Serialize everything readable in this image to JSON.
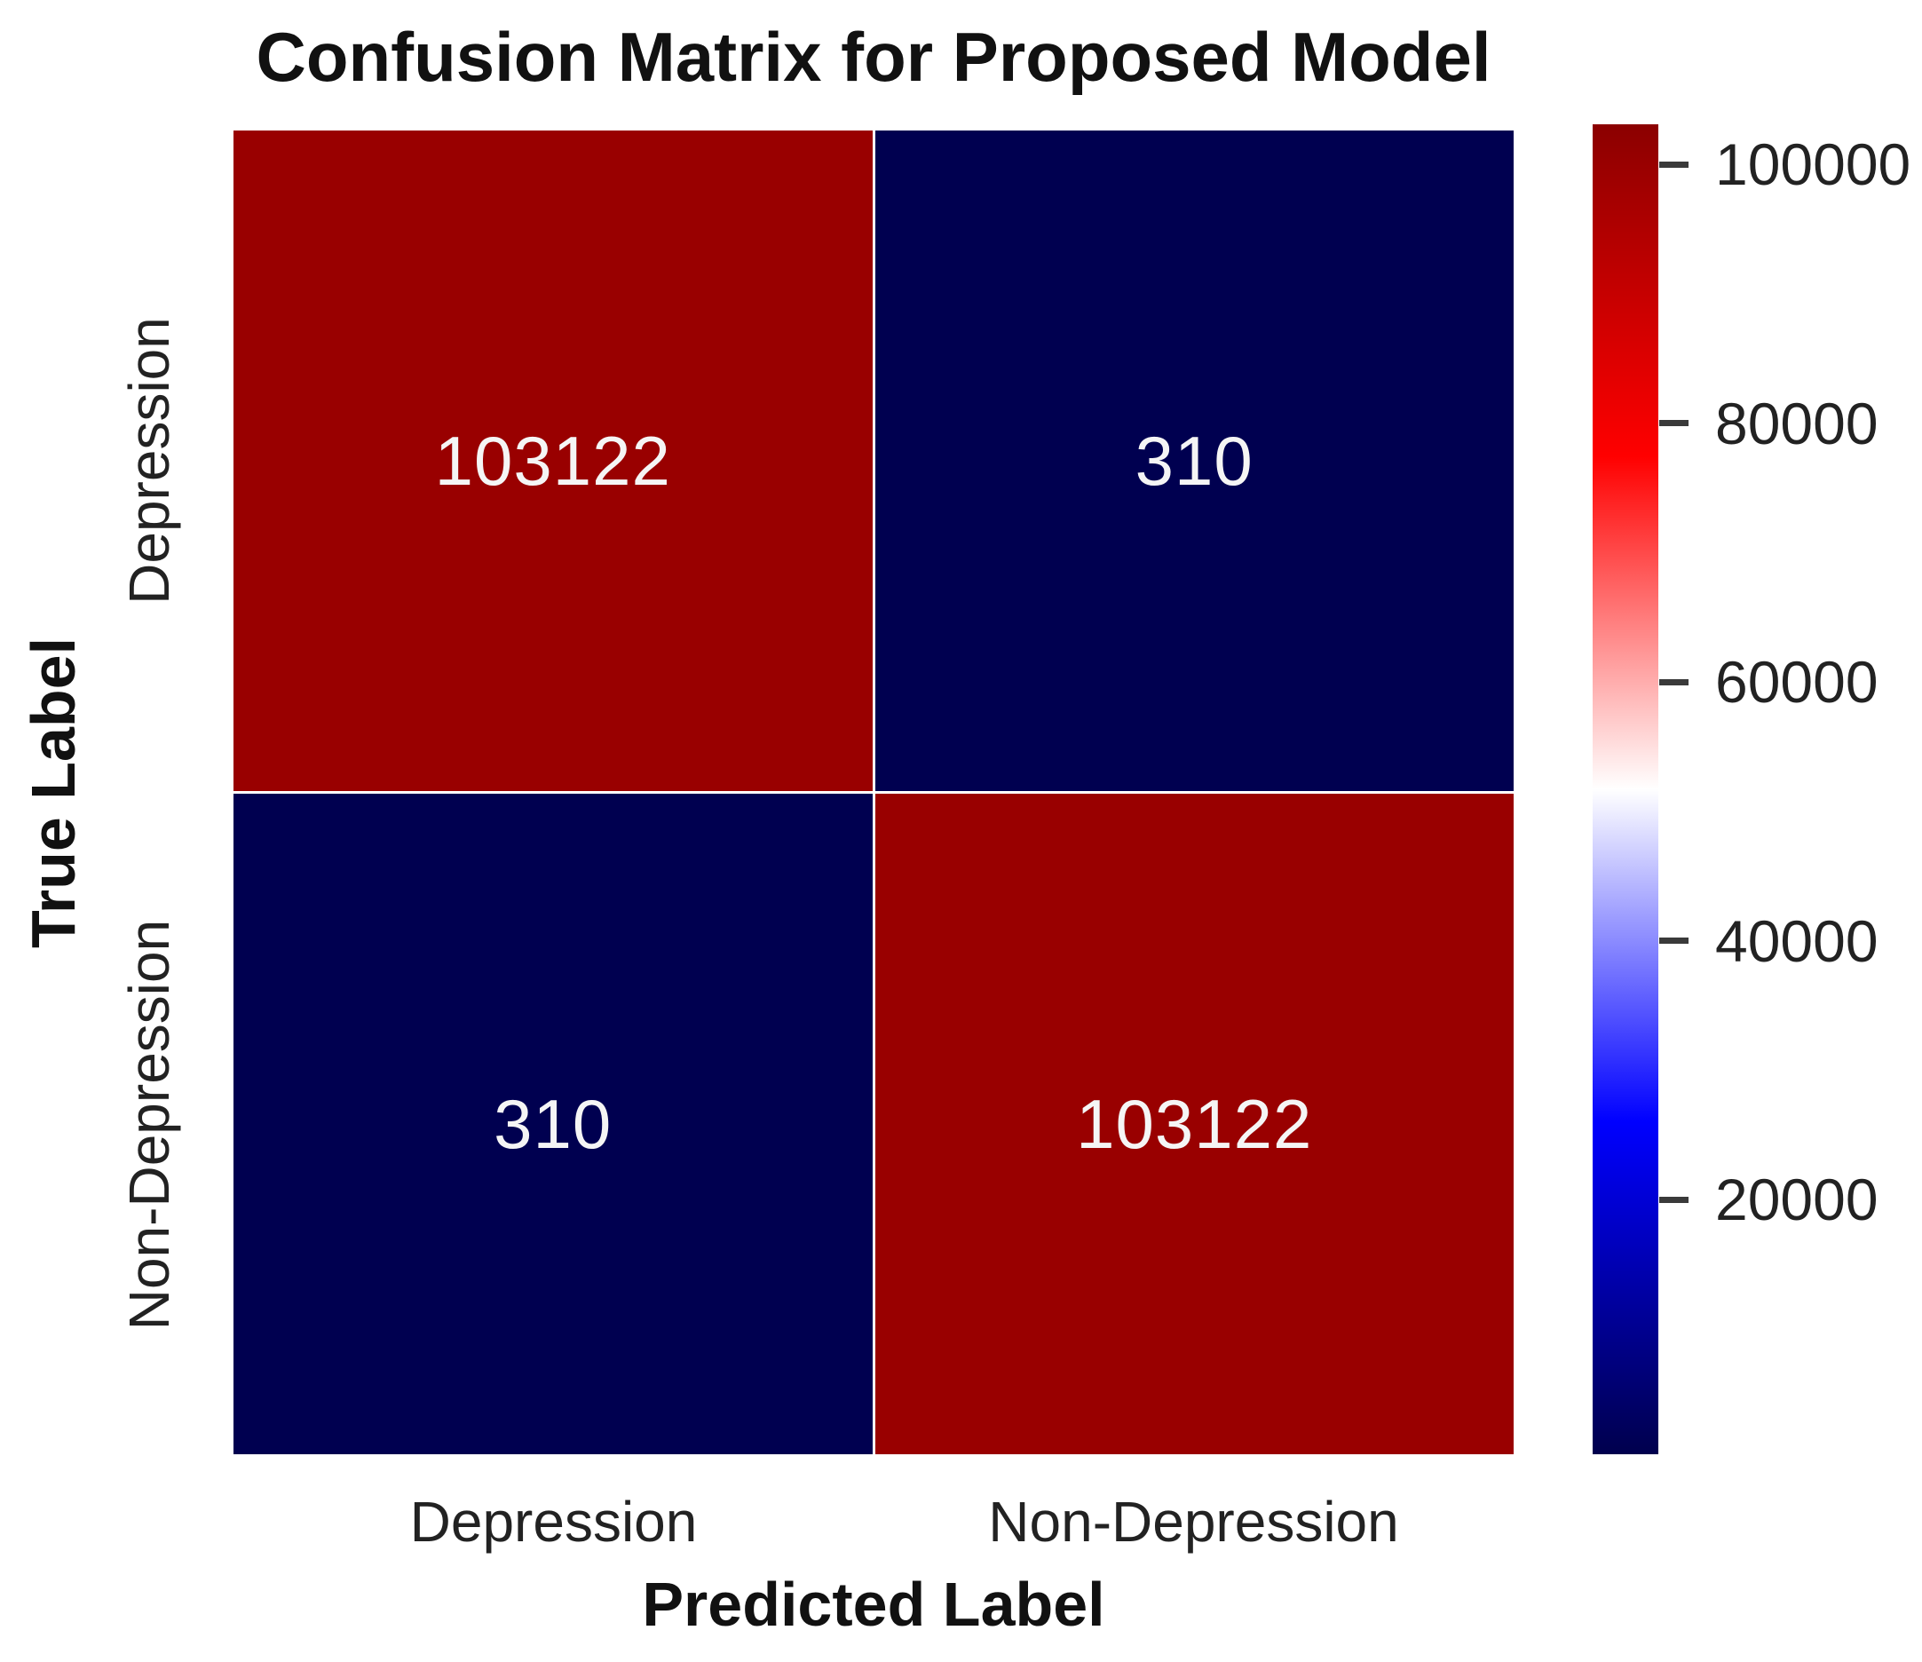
{
  "title": "Confusion Matrix for Proposed Model",
  "chart_data": {
    "type": "heatmap",
    "title": "Confusion Matrix for Proposed Model",
    "xlabel": "Predicted Label",
    "ylabel": "True Label",
    "x_categories": [
      "Depression",
      "Non-Depression"
    ],
    "y_categories": [
      "Depression",
      "Non-Depression"
    ],
    "matrix": [
      [
        103122,
        310
      ],
      [
        310,
        103122
      ]
    ],
    "vmin": 310,
    "vmax": 103122,
    "colormap": "seismic",
    "colorbar_ticks": [
      20000,
      40000,
      60000,
      80000,
      100000
    ],
    "legend_position": "right",
    "grid": false,
    "colors": {
      "cell_high": "#990000",
      "cell_low": "#000050",
      "annotation_text": "#f5f5f5",
      "tick_dash": "#3a3a3a",
      "colorbar_stops_top_to_bottom": [
        "#8b0000",
        "#ff0000",
        "#ffffff",
        "#0000ff",
        "#00004d"
      ]
    }
  }
}
